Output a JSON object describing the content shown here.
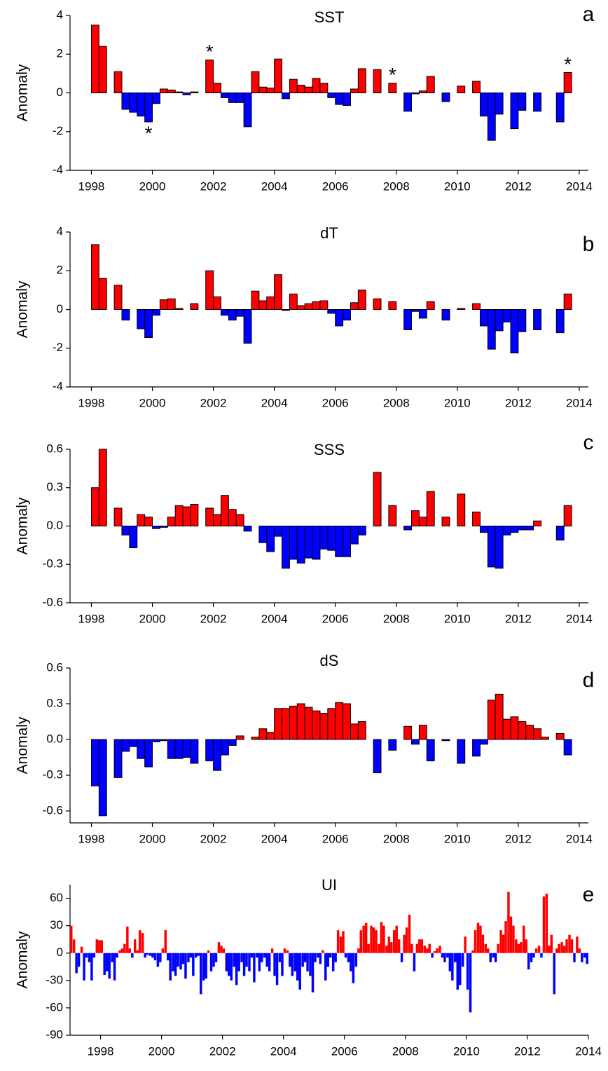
{
  "chart_data": [
    {
      "type": "bar",
      "title": "SST",
      "panel_label": "a",
      "ylabel": "Anomaly",
      "positive_color": "#ff0000",
      "negative_color": "#0000ff",
      "edgecolor": "#000000",
      "xlim": [
        1997.3,
        2014.3
      ],
      "xticks": [
        1998,
        2000,
        2002,
        2004,
        2006,
        2008,
        2010,
        2012,
        2014
      ],
      "ylim": [
        -4,
        4
      ],
      "yticks": [
        -4,
        -2,
        0,
        2,
        4
      ],
      "x": [
        1998.125,
        1998.375,
        1998.625,
        1998.875,
        1999.125,
        1999.375,
        1999.625,
        1999.875,
        2000.125,
        2000.375,
        2000.625,
        2000.875,
        2001.125,
        2001.375,
        2001.625,
        2001.875,
        2002.125,
        2002.375,
        2002.625,
        2002.875,
        2003.125,
        2003.375,
        2003.625,
        2003.875,
        2004.125,
        2004.375,
        2004.625,
        2004.875,
        2005.125,
        2005.375,
        2005.625,
        2005.875,
        2006.125,
        2006.375,
        2006.625,
        2006.875,
        2007.125,
        2007.375,
        2007.625,
        2007.875,
        2008.125,
        2008.375,
        2008.625,
        2008.875,
        2009.125,
        2009.375,
        2009.625,
        2009.875,
        2010.125,
        2010.375,
        2010.625,
        2010.875,
        2011.125,
        2011.375,
        2011.625,
        2011.875,
        2012.125,
        2012.375,
        2012.625,
        2012.875,
        2013.125,
        2013.375,
        2013.625
      ],
      "values": [
        3.5,
        2.4,
        null,
        1.1,
        -0.85,
        -1.0,
        -1.2,
        -1.5,
        -0.55,
        0.2,
        0.15,
        0.05,
        -0.1,
        0.05,
        null,
        1.7,
        0.5,
        -0.25,
        -0.5,
        -0.5,
        -1.75,
        1.1,
        0.3,
        0.25,
        1.75,
        -0.3,
        0.7,
        0.4,
        0.3,
        0.75,
        0.5,
        -0.25,
        -0.6,
        -0.65,
        0.2,
        1.25,
        null,
        1.2,
        null,
        0.5,
        null,
        -0.95,
        -0.05,
        0.1,
        0.85,
        null,
        -0.45,
        null,
        0.35,
        null,
        0.6,
        -1.2,
        -2.45,
        -1.1,
        null,
        -1.85,
        -0.9,
        null,
        -0.95,
        null,
        null,
        -1.5,
        1.05
      ],
      "annotations": [
        {
          "text": "*",
          "x": 1999.875
        },
        {
          "text": "*",
          "x": 2001.875
        },
        {
          "text": "*",
          "x": 2007.875
        },
        {
          "text": "*",
          "x": 2013.625
        }
      ]
    },
    {
      "type": "bar",
      "title": "dT",
      "panel_label": "b",
      "ylabel": "Anomaly",
      "positive_color": "#ff0000",
      "negative_color": "#0000ff",
      "edgecolor": "#000000",
      "xlim": [
        1997.3,
        2014.3
      ],
      "xticks": [
        1998,
        2000,
        2002,
        2004,
        2006,
        2008,
        2010,
        2012,
        2014
      ],
      "ylim": [
        -4,
        4
      ],
      "yticks": [
        -4,
        -2,
        0,
        2,
        4
      ],
      "x": [
        1998.125,
        1998.375,
        1998.625,
        1998.875,
        1999.125,
        1999.375,
        1999.625,
        1999.875,
        2000.125,
        2000.375,
        2000.625,
        2000.875,
        2001.125,
        2001.375,
        2001.625,
        2001.875,
        2002.125,
        2002.375,
        2002.625,
        2002.875,
        2003.125,
        2003.375,
        2003.625,
        2003.875,
        2004.125,
        2004.375,
        2004.625,
        2004.875,
        2005.125,
        2005.375,
        2005.625,
        2005.875,
        2006.125,
        2006.375,
        2006.625,
        2006.875,
        2007.125,
        2007.375,
        2007.625,
        2007.875,
        2008.125,
        2008.375,
        2008.625,
        2008.875,
        2009.125,
        2009.375,
        2009.625,
        2009.875,
        2010.125,
        2010.375,
        2010.625,
        2010.875,
        2011.125,
        2011.375,
        2011.625,
        2011.875,
        2012.125,
        2012.375,
        2012.625,
        2012.875,
        2013.125,
        2013.375,
        2013.625
      ],
      "values": [
        3.35,
        1.6,
        null,
        1.25,
        -0.55,
        null,
        -1.0,
        -1.45,
        -0.3,
        0.5,
        0.55,
        0.05,
        0.0,
        0.3,
        null,
        2.0,
        0.65,
        -0.3,
        -0.55,
        -0.35,
        -1.75,
        0.95,
        0.45,
        0.65,
        1.8,
        -0.05,
        0.8,
        0.2,
        0.3,
        0.4,
        0.45,
        -0.2,
        -0.85,
        -0.55,
        0.35,
        1.0,
        null,
        0.55,
        null,
        0.4,
        null,
        -1.05,
        -0.1,
        -0.45,
        0.4,
        null,
        -0.55,
        null,
        0.05,
        null,
        0.3,
        -0.85,
        -2.05,
        -1.1,
        -0.65,
        -2.25,
        -1.15,
        null,
        -1.05,
        null,
        null,
        -1.2,
        0.8
      ]
    },
    {
      "type": "bar",
      "title": "SSS",
      "panel_label": "c",
      "ylabel": "Anomaly",
      "positive_color": "#ff0000",
      "negative_color": "#0000ff",
      "edgecolor": "#000000",
      "xlim": [
        1997.3,
        2014.3
      ],
      "xticks": [
        1998,
        2000,
        2002,
        2004,
        2006,
        2008,
        2010,
        2012,
        2014
      ],
      "ylim": [
        -0.6,
        0.6
      ],
      "yticks": [
        -0.6,
        -0.3,
        {
          "value": 0,
          "label": "0.0"
        },
        0.3,
        0.6
      ],
      "x": [
        1998.125,
        1998.375,
        1998.625,
        1998.875,
        1999.125,
        1999.375,
        1999.625,
        1999.875,
        2000.125,
        2000.375,
        2000.625,
        2000.875,
        2001.125,
        2001.375,
        2001.625,
        2001.875,
        2002.125,
        2002.375,
        2002.625,
        2002.875,
        2003.125,
        2003.375,
        2003.625,
        2003.875,
        2004.125,
        2004.375,
        2004.625,
        2004.875,
        2005.125,
        2005.375,
        2005.625,
        2005.875,
        2006.125,
        2006.375,
        2006.625,
        2006.875,
        2007.125,
        2007.375,
        2007.625,
        2007.875,
        2008.125,
        2008.375,
        2008.625,
        2008.875,
        2009.125,
        2009.375,
        2009.625,
        2009.875,
        2010.125,
        2010.375,
        2010.625,
        2010.875,
        2011.125,
        2011.375,
        2011.625,
        2011.875,
        2012.125,
        2012.375,
        2012.625,
        2012.875,
        2013.125,
        2013.375,
        2013.625
      ],
      "values": [
        0.3,
        0.6,
        null,
        0.14,
        -0.07,
        -0.17,
        0.09,
        0.07,
        -0.02,
        -0.01,
        0.07,
        0.16,
        0.15,
        0.17,
        null,
        0.14,
        0.09,
        0.24,
        0.13,
        0.09,
        -0.04,
        0.0,
        -0.13,
        -0.2,
        -0.08,
        -0.33,
        -0.26,
        -0.29,
        -0.25,
        -0.26,
        -0.18,
        -0.19,
        -0.24,
        -0.24,
        -0.14,
        -0.07,
        null,
        0.42,
        null,
        0.16,
        null,
        -0.03,
        0.12,
        0.07,
        0.27,
        null,
        0.07,
        null,
        0.25,
        null,
        0.11,
        -0.05,
        -0.32,
        -0.33,
        -0.07,
        -0.05,
        -0.03,
        -0.03,
        0.04,
        null,
        null,
        -0.11,
        0.16
      ]
    },
    {
      "type": "bar",
      "title": "dS",
      "panel_label": "d",
      "ylabel": "Anomaly",
      "positive_color": "#ff0000",
      "negative_color": "#0000ff",
      "edgecolor": "#000000",
      "xlim": [
        1997.3,
        2014.3
      ],
      "xticks": [
        1998,
        2000,
        2002,
        2004,
        2006,
        2008,
        2010,
        2012,
        2014
      ],
      "ylim": [
        -0.7,
        0.6
      ],
      "yticks": [
        -0.6,
        -0.3,
        {
          "value": 0,
          "label": "0.0"
        },
        0.3,
        0.6
      ],
      "x": [
        1998.125,
        1998.375,
        1998.625,
        1998.875,
        1999.125,
        1999.375,
        1999.625,
        1999.875,
        2000.125,
        2000.375,
        2000.625,
        2000.875,
        2001.125,
        2001.375,
        2001.625,
        2001.875,
        2002.125,
        2002.375,
        2002.625,
        2002.875,
        2003.125,
        2003.375,
        2003.625,
        2003.875,
        2004.125,
        2004.375,
        2004.625,
        2004.875,
        2005.125,
        2005.375,
        2005.625,
        2005.875,
        2006.125,
        2006.375,
        2006.625,
        2006.875,
        2007.125,
        2007.375,
        2007.625,
        2007.875,
        2008.125,
        2008.375,
        2008.625,
        2008.875,
        2009.125,
        2009.375,
        2009.625,
        2009.875,
        2010.125,
        2010.375,
        2010.625,
        2010.875,
        2011.125,
        2011.375,
        2011.625,
        2011.875,
        2012.125,
        2012.375,
        2012.625,
        2012.875,
        2013.125,
        2013.375,
        2013.625
      ],
      "values": [
        -0.39,
        -0.64,
        null,
        -0.32,
        -0.1,
        -0.06,
        -0.16,
        -0.23,
        -0.02,
        -0.01,
        -0.16,
        -0.16,
        -0.15,
        -0.2,
        null,
        -0.18,
        -0.26,
        -0.13,
        -0.05,
        0.03,
        0.0,
        0.02,
        0.09,
        0.06,
        0.26,
        0.26,
        0.28,
        0.3,
        0.27,
        0.24,
        0.22,
        0.26,
        0.31,
        0.3,
        0.13,
        0.15,
        null,
        -0.28,
        null,
        -0.09,
        null,
        0.11,
        -0.04,
        0.12,
        -0.18,
        null,
        -0.01,
        null,
        -0.2,
        null,
        -0.14,
        -0.04,
        0.33,
        0.38,
        0.17,
        0.19,
        0.15,
        0.12,
        0.09,
        0.02,
        null,
        0.05,
        -0.13
      ]
    },
    {
      "type": "bar",
      "title": "UI",
      "panel_label": "e",
      "ylabel": "Anomaly",
      "positive_color": "#ff0000",
      "negative_color": "#0000ff",
      "xlim": [
        1997,
        2014
      ],
      "xticks": [
        1998,
        2000,
        2002,
        2004,
        2006,
        2008,
        2010,
        2012,
        2014
      ],
      "ylim": [
        -90,
        75
      ],
      "yticks": [
        -90,
        -60,
        -30,
        0,
        30,
        60
      ],
      "x": [
        1997.04,
        1997.13,
        1997.21,
        1997.29,
        1997.38,
        1997.46,
        1997.54,
        1997.63,
        1997.71,
        1997.79,
        1997.88,
        1997.96,
        1998.04,
        1998.13,
        1998.21,
        1998.29,
        1998.38,
        1998.46,
        1998.54,
        1998.63,
        1998.71,
        1998.79,
        1998.88,
        1998.96,
        1999.04,
        1999.13,
        1999.21,
        1999.29,
        1999.38,
        1999.46,
        1999.54,
        1999.63,
        1999.71,
        1999.79,
        1999.88,
        1999.96,
        2000.04,
        2000.13,
        2000.21,
        2000.29,
        2000.38,
        2000.46,
        2000.54,
        2000.63,
        2000.71,
        2000.79,
        2000.88,
        2000.96,
        2001.04,
        2001.13,
        2001.21,
        2001.29,
        2001.38,
        2001.46,
        2001.54,
        2001.63,
        2001.71,
        2001.79,
        2001.88,
        2001.96,
        2002.04,
        2002.13,
        2002.21,
        2002.29,
        2002.38,
        2002.46,
        2002.54,
        2002.63,
        2002.71,
        2002.79,
        2002.88,
        2002.96,
        2003.04,
        2003.13,
        2003.21,
        2003.29,
        2003.38,
        2003.46,
        2003.54,
        2003.63,
        2003.71,
        2003.79,
        2003.88,
        2003.96,
        2004.04,
        2004.13,
        2004.21,
        2004.29,
        2004.38,
        2004.46,
        2004.54,
        2004.63,
        2004.71,
        2004.79,
        2004.88,
        2004.96,
        2005.04,
        2005.13,
        2005.21,
        2005.29,
        2005.38,
        2005.46,
        2005.54,
        2005.63,
        2005.71,
        2005.79,
        2005.88,
        2005.96,
        2006.04,
        2006.13,
        2006.21,
        2006.29,
        2006.38,
        2006.46,
        2006.54,
        2006.63,
        2006.71,
        2006.79,
        2006.88,
        2006.96,
        2007.04,
        2007.13,
        2007.21,
        2007.29,
        2007.38,
        2007.46,
        2007.54,
        2007.63,
        2007.71,
        2007.79,
        2007.88,
        2007.96,
        2008.04,
        2008.13,
        2008.21,
        2008.29,
        2008.38,
        2008.46,
        2008.54,
        2008.63,
        2008.71,
        2008.79,
        2008.88,
        2008.96,
        2009.04,
        2009.13,
        2009.21,
        2009.29,
        2009.38,
        2009.46,
        2009.54,
        2009.63,
        2009.71,
        2009.79,
        2009.88,
        2009.96,
        2010.04,
        2010.13,
        2010.21,
        2010.29,
        2010.38,
        2010.46,
        2010.54,
        2010.63,
        2010.71,
        2010.79,
        2010.88,
        2010.96,
        2011.04,
        2011.13,
        2011.21,
        2011.29,
        2011.38,
        2011.46,
        2011.54,
        2011.63,
        2011.71,
        2011.79,
        2011.88,
        2011.96,
        2012.04,
        2012.13,
        2012.21,
        2012.29,
        2012.38,
        2012.46,
        2012.54,
        2012.63,
        2012.71,
        2012.79,
        2012.88,
        2012.96,
        2013.04,
        2013.13,
        2013.21,
        2013.29,
        2013.38,
        2013.46,
        2013.54,
        2013.63,
        2013.71,
        2013.79,
        2013.88,
        2013.96
      ],
      "values": [
        30,
        15,
        -22,
        -15,
        7,
        -30,
        -5,
        -10,
        -30,
        -5,
        15,
        14,
        14,
        -24,
        -20,
        -28,
        -10,
        -30,
        -5,
        3,
        5,
        10,
        29,
        5,
        -5,
        15,
        3,
        25,
        22,
        -5,
        -2,
        -3,
        -5,
        -8,
        -15,
        -10,
        5,
        25,
        -8,
        -30,
        -20,
        -25,
        -15,
        -18,
        -12,
        -28,
        -10,
        -5,
        -25,
        -5,
        -3,
        -45,
        -30,
        -28,
        3,
        -20,
        -15,
        -10,
        12,
        8,
        5,
        -20,
        -25,
        -30,
        -15,
        -35,
        -20,
        -10,
        -25,
        -15,
        -20,
        -5,
        -32,
        -5,
        -20,
        -10,
        -5,
        -15,
        -20,
        5,
        -25,
        -35,
        -10,
        -25,
        5,
        3,
        -15,
        -25,
        -20,
        -30,
        -40,
        -15,
        -10,
        -20,
        -25,
        -43,
        -10,
        -5,
        -12,
        3,
        -30,
        -15,
        -5,
        -20,
        -10,
        25,
        18,
        24,
        -5,
        -10,
        -20,
        -33,
        -15,
        5,
        25,
        30,
        33,
        10,
        30,
        28,
        25,
        10,
        34,
        30,
        8,
        18,
        12,
        25,
        30,
        15,
        -10,
        20,
        28,
        42,
        10,
        -20,
        10,
        15,
        15,
        8,
        5,
        10,
        -5,
        2,
        5,
        8,
        -5,
        -10,
        -5,
        -20,
        -30,
        -10,
        -40,
        -35,
        -15,
        18,
        -40,
        -65,
        3,
        25,
        33,
        30,
        20,
        10,
        5,
        -10,
        -5,
        -10,
        10,
        25,
        20,
        35,
        67,
        40,
        30,
        15,
        10,
        12,
        30,
        15,
        -18,
        -10,
        -5,
        5,
        8,
        -5,
        62,
        65,
        8,
        20,
        -45,
        5,
        10,
        12,
        8,
        15,
        20,
        15,
        -10,
        18,
        5,
        -10,
        -5,
        -12
      ]
    }
  ]
}
